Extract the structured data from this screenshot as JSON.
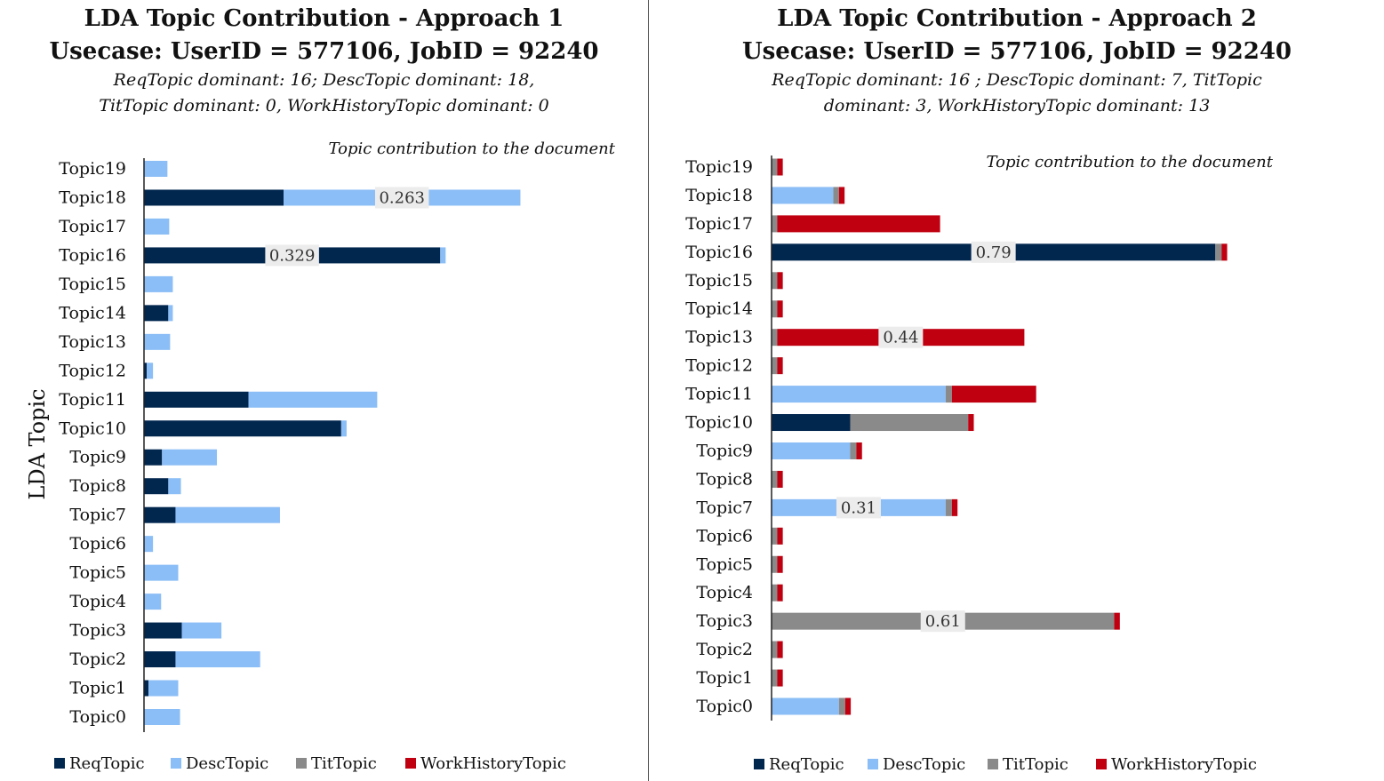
{
  "colors": {
    "ReqTopic": "#02274f",
    "DescTopic": "#8bbdf6",
    "TitTopic": "#8a8a8a",
    "WorkHistoryTopic": "#c00010"
  },
  "chart_data": [
    {
      "type": "bar",
      "orientation": "horizontal",
      "stacked": true,
      "title": "LDA Topic Contribution - Approach 1",
      "subtitle": "Usecase: UserID = 577106, JobID = 92240",
      "note_line1": "ReqTopic dominant: 16; DescTopic dominant: 18,",
      "note_line2": "TitTopic dominant: 0, WorkHistoryTopic dominant: 0",
      "xlabel": "Topic contribution to the document",
      "ylabel": "LDA Topic",
      "xlim": [
        0,
        0.9
      ],
      "legend_position": "bottom",
      "categories": [
        "Topic0",
        "Topic1",
        "Topic2",
        "Topic3",
        "Topic4",
        "Topic5",
        "Topic6",
        "Topic7",
        "Topic8",
        "Topic9",
        "Topic10",
        "Topic11",
        "Topic12",
        "Topic13",
        "Topic14",
        "Topic15",
        "Topic16",
        "Topic17",
        "Topic18",
        "Topic19"
      ],
      "series": [
        {
          "name": "ReqTopic",
          "values": [
            0,
            0.005,
            0.035,
            0.042,
            0,
            0,
            0,
            0.035,
            0.027,
            0.02,
            0.219,
            0.116,
            0.003,
            0,
            0.027,
            0,
            0.329,
            0,
            0.155,
            0
          ]
        },
        {
          "name": "DescTopic",
          "values": [
            0.04,
            0.033,
            0.094,
            0.044,
            0.019,
            0.038,
            0.01,
            0.116,
            0.014,
            0.061,
            0.006,
            0.143,
            0.007,
            0.029,
            0.005,
            0.032,
            0.006,
            0.028,
            0.263,
            0.026
          ]
        },
        {
          "name": "TitTopic",
          "values": [
            0,
            0,
            0,
            0,
            0,
            0,
            0,
            0,
            0,
            0,
            0,
            0,
            0,
            0,
            0,
            0,
            0,
            0,
            0,
            0
          ]
        },
        {
          "name": "WorkHistoryTopic",
          "values": [
            0,
            0,
            0,
            0,
            0,
            0,
            0,
            0,
            0,
            0,
            0,
            0,
            0,
            0,
            0,
            0,
            0,
            0,
            0,
            0
          ]
        }
      ],
      "data_labels": [
        {
          "category": "Topic16",
          "series": "ReqTopic",
          "text": "0.329"
        },
        {
          "category": "Topic18",
          "series": "DescTopic",
          "text": "0.263"
        }
      ]
    },
    {
      "type": "bar",
      "orientation": "horizontal",
      "stacked": true,
      "title": "LDA Topic Contribution - Approach 2",
      "subtitle": "Usecase: UserID = 577106, JobID = 92240",
      "note_line1": "ReqTopic dominant: 16 ; DescTopic dominant: 7, TitTopic",
      "note_line2": "dominant: 3, WorkHistoryTopic dominant: 13",
      "xlabel": "Topic contribution to the document",
      "ylabel": "",
      "xlim": [
        0,
        1.2
      ],
      "legend_position": "bottom",
      "categories": [
        "Topic0",
        "Topic1",
        "Topic2",
        "Topic3",
        "Topic4",
        "Topic5",
        "Topic6",
        "Topic7",
        "Topic8",
        "Topic9",
        "Topic10",
        "Topic11",
        "Topic12",
        "Topic13",
        "Topic14",
        "Topic15",
        "Topic16",
        "Topic17",
        "Topic18",
        "Topic19"
      ],
      "series": [
        {
          "name": "ReqTopic",
          "values": [
            0,
            0,
            0,
            0,
            0,
            0,
            0,
            0,
            0,
            0,
            0.14,
            0,
            0,
            0,
            0,
            0,
            0.79,
            0,
            0,
            0
          ]
        },
        {
          "name": "DescTopic",
          "values": [
            0.12,
            0,
            0,
            0,
            0,
            0,
            0,
            0.31,
            0,
            0.14,
            0,
            0.31,
            0,
            0,
            0,
            0,
            0,
            0,
            0.11,
            0
          ]
        },
        {
          "name": "TitTopic",
          "values": [
            0.011,
            0.01,
            0.01,
            0.61,
            0.01,
            0.01,
            0.01,
            0.011,
            0.01,
            0.011,
            0.21,
            0.011,
            0.01,
            0.01,
            0.01,
            0.01,
            0.011,
            0.01,
            0.01,
            0.01
          ]
        },
        {
          "name": "WorkHistoryTopic",
          "values": [
            0.01,
            0.01,
            0.01,
            0.01,
            0.01,
            0.01,
            0.01,
            0.01,
            0.01,
            0.01,
            0.01,
            0.15,
            0.01,
            0.44,
            0.01,
            0.01,
            0.01,
            0.29,
            0.01,
            0.01
          ]
        }
      ],
      "data_labels": [
        {
          "category": "Topic16",
          "series": "ReqTopic",
          "text": "0.79"
        },
        {
          "category": "Topic13",
          "series": "WorkHistoryTopic",
          "text": "0.44"
        },
        {
          "category": "Topic7",
          "series": "DescTopic",
          "text": "0.31"
        },
        {
          "category": "Topic3",
          "series": "TitTopic",
          "text": "0.61"
        }
      ]
    }
  ]
}
